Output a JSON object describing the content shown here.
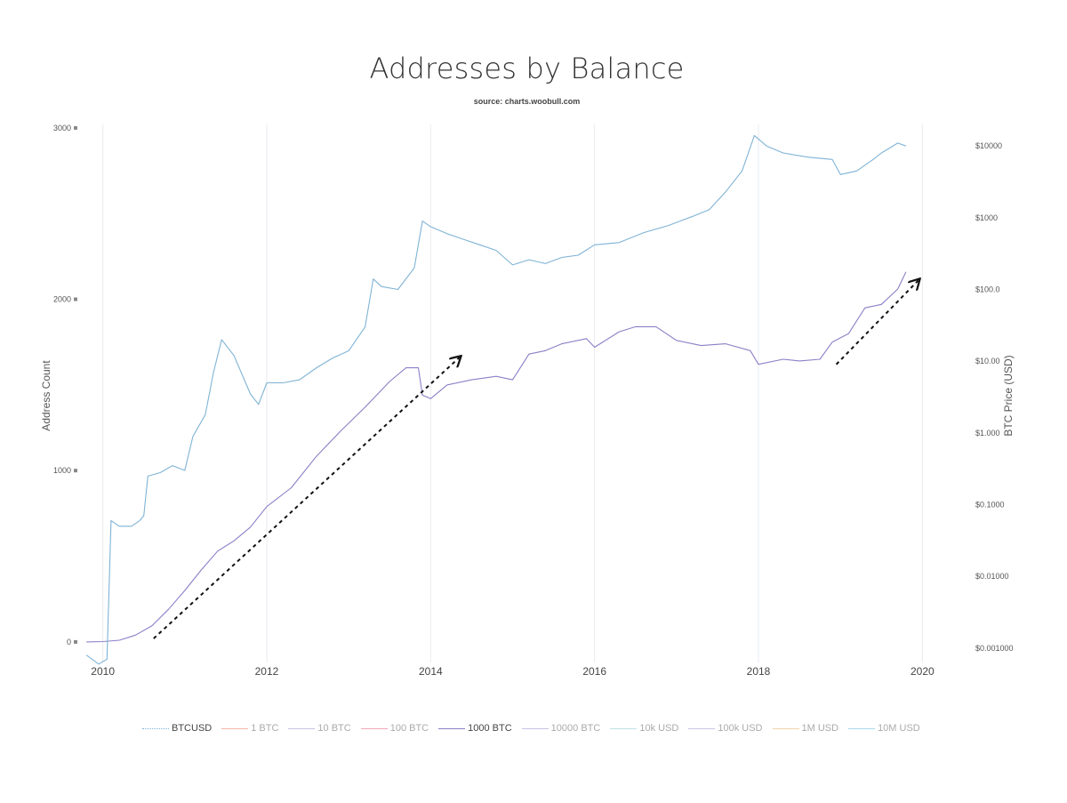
{
  "chart_data": {
    "type": "line",
    "title": "Addresses by Balance",
    "subtitle": "source: charts.woobull.com",
    "ylabel": "Address Count",
    "y2label": "BTC Price (USD)",
    "ylim": [
      -120,
      3020
    ],
    "y2_scale": "log",
    "y2lim_log10": [
      -3.2,
      4.3
    ],
    "xlim": [
      2009.7,
      2020.3
    ],
    "grid": "vertical",
    "x_ticks": [
      "2010",
      "2012",
      "2014",
      "2016",
      "2018",
      "2020"
    ],
    "x_tick_values": [
      2010,
      2012,
      2014,
      2016,
      2018,
      2020
    ],
    "y_ticks": [
      "0",
      "1000",
      "2000",
      "3000"
    ],
    "y_tick_values": [
      0,
      1000,
      2000,
      3000
    ],
    "y2_ticks": [
      "$0.001000",
      "$0.01000",
      "$0.1000",
      "$1.000",
      "$10.00",
      "$100.0",
      "$1000",
      "$10000"
    ],
    "y2_tick_values": [
      0.001,
      0.01,
      0.1,
      1,
      10,
      100,
      1000,
      10000
    ],
    "legend": [
      "BTCUSD",
      "1 BTC",
      "10 BTC",
      "100 BTC",
      "1000 BTC",
      "10000 BTC",
      "10k USD",
      "100k USD",
      "1M USD",
      "10M USD"
    ],
    "legend_active": [
      "BTCUSD",
      "1000 BTC"
    ],
    "legend_colors": [
      "#7fb3d5",
      "#f4b8a5",
      "#c9c3e3",
      "#f0a8b8",
      "#8b7fc7",
      "#c8c2e2",
      "#bfe3e6",
      "#cfc5e5",
      "#f3d3a8",
      "#a8d8ea"
    ],
    "series": [
      {
        "name": "1000 BTC",
        "axis": "left",
        "color": "#8b7fc7",
        "x": [
          2009.8,
          2010.0,
          2010.2,
          2010.4,
          2010.6,
          2010.8,
          2011.0,
          2011.2,
          2011.4,
          2011.6,
          2011.8,
          2012.0,
          2012.3,
          2012.6,
          2012.9,
          2013.2,
          2013.5,
          2013.7,
          2013.85,
          2013.9,
          2014.0,
          2014.2,
          2014.5,
          2014.8,
          2015.0,
          2015.2,
          2015.4,
          2015.6,
          2015.9,
          2016.0,
          2016.3,
          2016.5,
          2016.75,
          2017.0,
          2017.3,
          2017.6,
          2017.9,
          2018.0,
          2018.3,
          2018.5,
          2018.75,
          2018.9,
          2019.1,
          2019.3,
          2019.5,
          2019.7,
          2019.8
        ],
        "y": [
          0,
          2,
          10,
          40,
          95,
          190,
          300,
          420,
          530,
          590,
          670,
          790,
          900,
          1080,
          1230,
          1370,
          1520,
          1600,
          1600,
          1440,
          1420,
          1500,
          1530,
          1550,
          1530,
          1680,
          1700,
          1740,
          1770,
          1720,
          1810,
          1840,
          1840,
          1760,
          1730,
          1740,
          1700,
          1620,
          1650,
          1640,
          1650,
          1750,
          1800,
          1950,
          1970,
          2060,
          2160
        ]
      },
      {
        "name": "BTCUSD",
        "axis": "right",
        "color": "#7fb3d5",
        "x": [
          2009.8,
          2009.95,
          2010.05,
          2010.1,
          2010.2,
          2010.35,
          2010.45,
          2010.5,
          2010.55,
          2010.7,
          2010.85,
          2011.0,
          2011.1,
          2011.25,
          2011.35,
          2011.45,
          2011.6,
          2011.8,
          2011.9,
          2012.0,
          2012.2,
          2012.4,
          2012.6,
          2012.8,
          2013.0,
          2013.2,
          2013.3,
          2013.4,
          2013.6,
          2013.8,
          2013.9,
          2014.0,
          2014.2,
          2014.4,
          2014.6,
          2014.8,
          2015.0,
          2015.2,
          2015.4,
          2015.6,
          2015.8,
          2016.0,
          2016.3,
          2016.6,
          2016.9,
          2017.2,
          2017.4,
          2017.6,
          2017.8,
          2017.95,
          2018.1,
          2018.3,
          2018.6,
          2018.9,
          2019.0,
          2019.2,
          2019.4,
          2019.5,
          2019.7,
          2019.8
        ],
        "y": [
          0.0008,
          0.0006,
          0.0007,
          0.06,
          0.05,
          0.05,
          0.06,
          0.07,
          0.25,
          0.28,
          0.35,
          0.3,
          0.9,
          1.8,
          7,
          20,
          12,
          3.5,
          2.5,
          5,
          5,
          5.5,
          8,
          11,
          14,
          30,
          140,
          110,
          100,
          200,
          900,
          750,
          600,
          500,
          420,
          350,
          220,
          260,
          230,
          280,
          300,
          420,
          450,
          620,
          780,
          1050,
          1300,
          2300,
          4500,
          14000,
          10000,
          8000,
          7000,
          6500,
          4000,
          4500,
          6500,
          8000,
          11000,
          10000
        ]
      }
    ],
    "annotations": [
      "dashed-arrow",
      "dashed-arrow"
    ]
  }
}
